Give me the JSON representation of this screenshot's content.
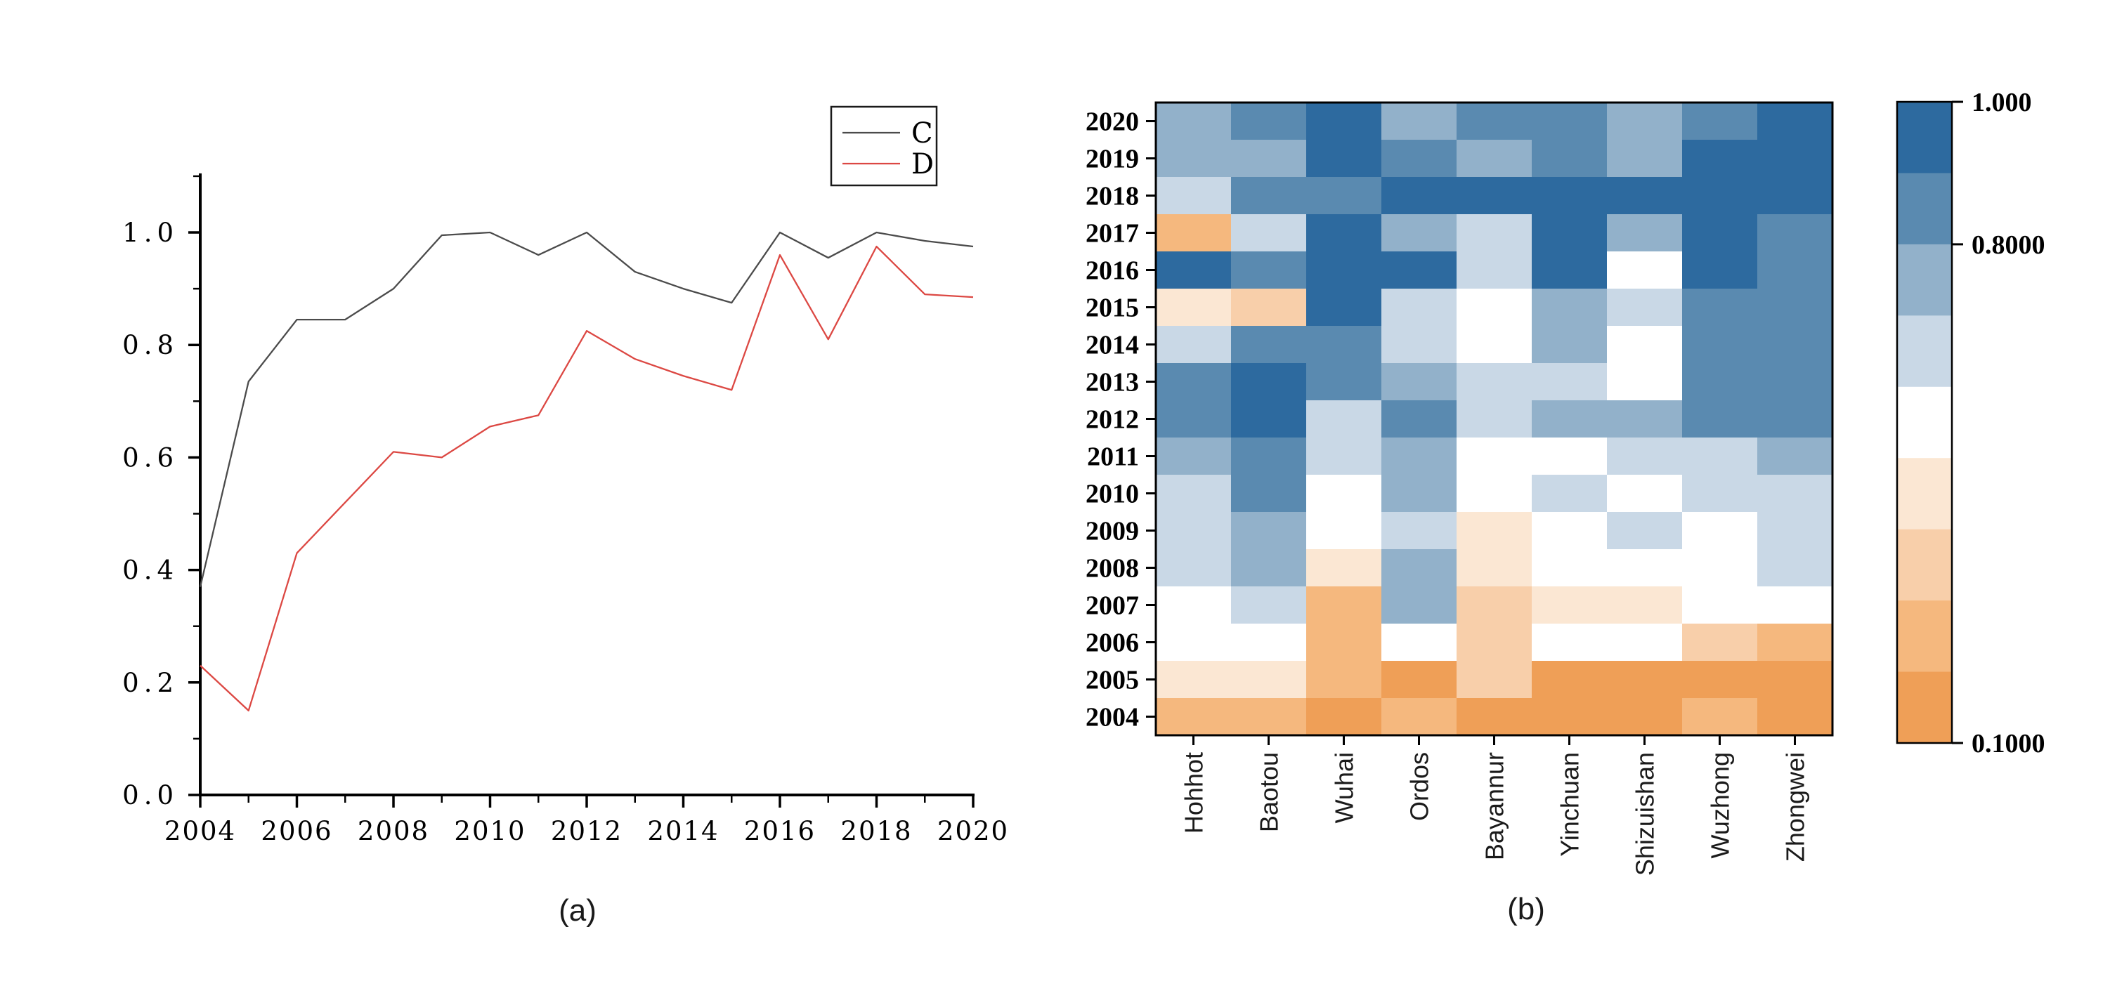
{
  "figure": {
    "background": "#ffffff"
  },
  "chart_data": [
    {
      "type": "line",
      "caption": "(a)",
      "x": [
        2004,
        2005,
        2006,
        2007,
        2008,
        2009,
        2010,
        2011,
        2012,
        2013,
        2014,
        2015,
        2016,
        2017,
        2018,
        2019,
        2020
      ],
      "xtick_labels": [
        "2004",
        "2006",
        "2008",
        "2010",
        "2012",
        "2014",
        "2016",
        "2018",
        "2020"
      ],
      "ytick_labels": [
        "0.0",
        "0.2",
        "0.4",
        "0.6",
        "0.8",
        "1.0"
      ],
      "ylim": [
        0.0,
        1.1
      ],
      "grid": "off",
      "legend": {
        "position": "upper-right",
        "entries": [
          "C",
          "D"
        ]
      },
      "series": [
        {
          "name": "C",
          "color": "#4b4b4b",
          "values": [
            0.37,
            0.735,
            0.845,
            0.845,
            0.9,
            0.995,
            1.0,
            0.96,
            1.0,
            0.93,
            0.9,
            0.875,
            1.0,
            0.955,
            1.0,
            0.985,
            0.975
          ]
        },
        {
          "name": "D",
          "color": "#dc4843",
          "values": [
            0.23,
            0.15,
            0.43,
            0.52,
            0.61,
            0.6,
            0.655,
            0.675,
            0.825,
            0.775,
            0.745,
            0.72,
            0.96,
            0.81,
            0.975,
            0.89,
            0.885
          ]
        }
      ]
    },
    {
      "type": "heatmap",
      "caption": "(b)",
      "rows": [
        "2020",
        "2019",
        "2018",
        "2017",
        "2016",
        "2015",
        "2014",
        "2013",
        "2012",
        "2011",
        "2010",
        "2009",
        "2008",
        "2007",
        "2006",
        "2005",
        "2004"
      ],
      "columns": [
        "Hohhot",
        "Baotou",
        "Wuhai",
        "Ordos",
        "Bayannur",
        "Yinchuan",
        "Shizuishan",
        "Wuzhong",
        "Zhongwei"
      ],
      "values": [
        [
          0.75,
          0.85,
          0.95,
          0.75,
          0.85,
          0.85,
          0.75,
          0.85,
          0.95
        ],
        [
          0.75,
          0.75,
          0.95,
          0.85,
          0.75,
          0.85,
          0.75,
          0.95,
          0.95
        ],
        [
          0.65,
          0.85,
          0.85,
          0.95,
          0.95,
          0.95,
          0.95,
          0.95,
          0.95
        ],
        [
          0.25,
          0.65,
          0.95,
          0.75,
          0.65,
          0.95,
          0.75,
          0.95,
          0.85
        ],
        [
          0.95,
          0.85,
          0.95,
          0.95,
          0.65,
          0.95,
          0.55,
          0.95,
          0.85
        ],
        [
          0.45,
          0.35,
          0.95,
          0.65,
          0.55,
          0.75,
          0.65,
          0.85,
          0.85
        ],
        [
          0.65,
          0.85,
          0.85,
          0.65,
          0.55,
          0.75,
          0.55,
          0.85,
          0.85
        ],
        [
          0.85,
          0.95,
          0.85,
          0.75,
          0.65,
          0.65,
          0.55,
          0.85,
          0.85
        ],
        [
          0.85,
          0.95,
          0.65,
          0.85,
          0.65,
          0.75,
          0.75,
          0.85,
          0.85
        ],
        [
          0.75,
          0.85,
          0.65,
          0.75,
          0.55,
          0.55,
          0.65,
          0.65,
          0.75
        ],
        [
          0.65,
          0.85,
          0.55,
          0.75,
          0.55,
          0.65,
          0.55,
          0.65,
          0.65
        ],
        [
          0.65,
          0.75,
          0.55,
          0.65,
          0.45,
          0.55,
          0.65,
          0.55,
          0.65
        ],
        [
          0.65,
          0.75,
          0.45,
          0.75,
          0.45,
          0.55,
          0.55,
          0.55,
          0.65
        ],
        [
          0.55,
          0.65,
          0.25,
          0.75,
          0.35,
          0.45,
          0.45,
          0.55,
          0.55
        ],
        [
          0.55,
          0.55,
          0.25,
          0.55,
          0.35,
          0.55,
          0.55,
          0.35,
          0.25
        ],
        [
          0.45,
          0.45,
          0.25,
          0.15,
          0.35,
          0.15,
          0.15,
          0.15,
          0.15
        ],
        [
          0.25,
          0.25,
          0.15,
          0.25,
          0.15,
          0.15,
          0.15,
          0.25,
          0.15
        ]
      ],
      "colorbar": {
        "min": 0.1,
        "max": 1.0,
        "tick_labels": [
          "1.000",
          "0.8000",
          "0.1000"
        ],
        "tick_values": [
          1.0,
          0.8,
          0.1
        ],
        "palette_high_to_low": [
          "#2d6a9f",
          "#5a8ab0",
          "#92b1ca",
          "#c9d8e6",
          "#ffffff",
          "#fbe7d3",
          "#f8cfaa",
          "#f5b87e",
          "#ef9f57"
        ]
      }
    }
  ]
}
